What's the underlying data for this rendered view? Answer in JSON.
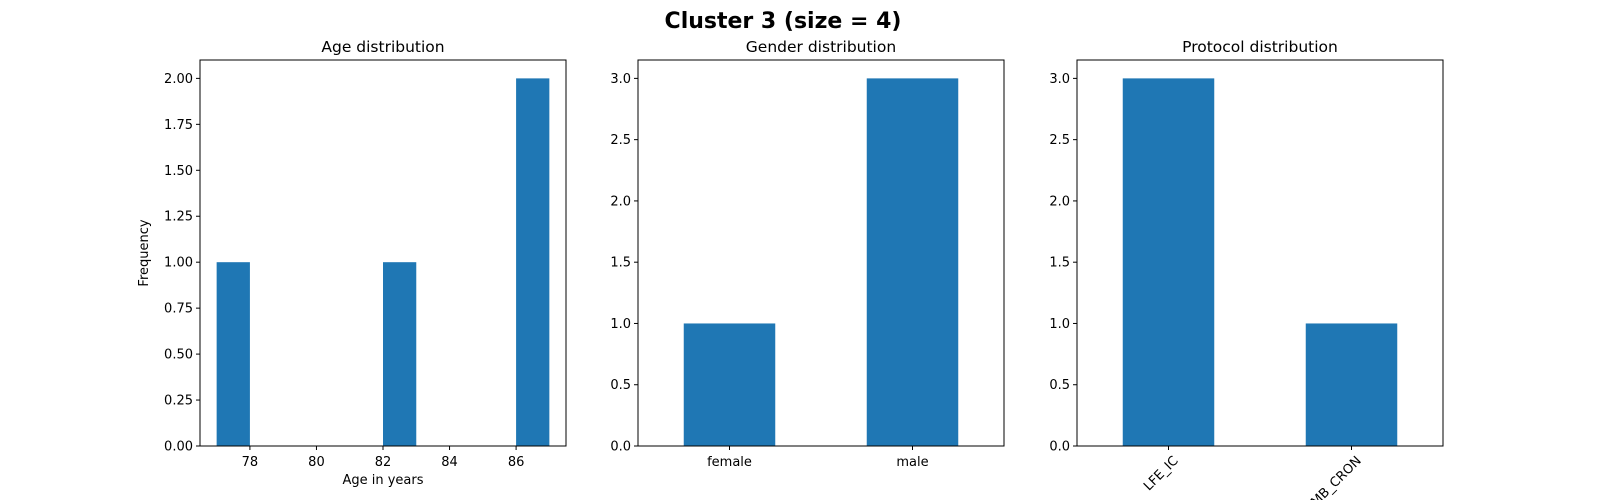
{
  "figure": {
    "title": "Cluster 3 (size = 4)"
  },
  "colors": {
    "bar": "#1f77b4",
    "axis": "#000000",
    "background": "#ffffff"
  },
  "chart_data": [
    {
      "type": "bar",
      "subtype": "histogram",
      "title": "Age distribution",
      "xlabel": "Age in years",
      "ylabel": "Frequency",
      "xlim": [
        76.5,
        87.5
      ],
      "ylim": [
        0,
        2.1
      ],
      "xticks": [
        78,
        80,
        82,
        84,
        86
      ],
      "yticks": [
        0.0,
        0.25,
        0.5,
        0.75,
        1.0,
        1.25,
        1.5,
        1.75,
        2.0
      ],
      "ytick_labels": [
        "0.00",
        "0.25",
        "0.50",
        "0.75",
        "1.00",
        "1.25",
        "1.50",
        "1.75",
        "2.00"
      ],
      "bins": [
        {
          "x0": 77.0,
          "x1": 78.0,
          "count": 1
        },
        {
          "x0": 82.0,
          "x1": 83.0,
          "count": 1
        },
        {
          "x0": 86.0,
          "x1": 87.0,
          "count": 2
        }
      ],
      "grid": false
    },
    {
      "type": "bar",
      "title": "Gender distribution",
      "xlabel": "",
      "ylabel": "",
      "categories": [
        "female",
        "male"
      ],
      "values": [
        1,
        3
      ],
      "ylim": [
        0,
        3.15
      ],
      "yticks": [
        0.0,
        0.5,
        1.0,
        1.5,
        2.0,
        2.5,
        3.0
      ],
      "ytick_labels": [
        "0.0",
        "0.5",
        "1.0",
        "1.5",
        "2.0",
        "2.5",
        "3.0"
      ],
      "label_rotation": 0,
      "grid": false
    },
    {
      "type": "bar",
      "title": "Protocol distribution",
      "xlabel": "",
      "ylabel": "",
      "categories": [
        "LFE_IC",
        "MB_CRON"
      ],
      "values": [
        3,
        1
      ],
      "ylim": [
        0,
        3.15
      ],
      "yticks": [
        0.0,
        0.5,
        1.0,
        1.5,
        2.0,
        2.5,
        3.0
      ],
      "ytick_labels": [
        "0.0",
        "0.5",
        "1.0",
        "1.5",
        "2.0",
        "2.5",
        "3.0"
      ],
      "label_rotation": -45,
      "grid": false
    }
  ]
}
